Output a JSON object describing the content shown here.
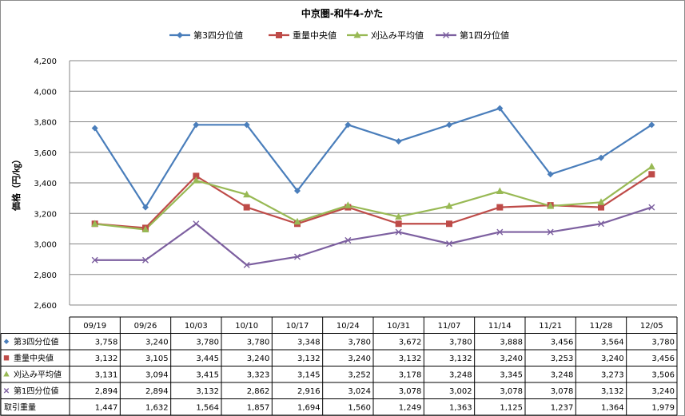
{
  "chart_data": {
    "type": "line",
    "title": "中京圏-和牛4-かた",
    "ylabel": "価格（円/㎏）",
    "ylim": [
      2600,
      4200
    ],
    "yticks": [
      "2,600",
      "2,800",
      "3,000",
      "3,200",
      "3,400",
      "3,600",
      "3,800",
      "4,000",
      "4,200"
    ],
    "ytick_values": [
      2600,
      2800,
      3000,
      3200,
      3400,
      3600,
      3800,
      4000,
      4200
    ],
    "grid": true,
    "legend_position": "top",
    "categories": [
      "09/19",
      "09/26",
      "10/03",
      "10/10",
      "10/17",
      "10/24",
      "10/31",
      "11/07",
      "11/14",
      "11/21",
      "11/28",
      "12/05"
    ],
    "series": [
      {
        "name": "第3四分位値",
        "color": "#4a7ebb",
        "marker": "diamond",
        "values": [
          3758,
          3240,
          3780,
          3780,
          3348,
          3780,
          3672,
          3780,
          3888,
          3456,
          3564,
          3780
        ],
        "labels": [
          "3,758",
          "3,240",
          "3,780",
          "3,780",
          "3,348",
          "3,780",
          "3,672",
          "3,780",
          "3,888",
          "3,456",
          "3,564",
          "3,780"
        ]
      },
      {
        "name": "重量中央値",
        "color": "#be4b48",
        "marker": "square",
        "values": [
          3132,
          3105,
          3445,
          3240,
          3132,
          3240,
          3132,
          3132,
          3240,
          3253,
          3240,
          3456
        ],
        "labels": [
          "3,132",
          "3,105",
          "3,445",
          "3,240",
          "3,132",
          "3,240",
          "3,132",
          "3,132",
          "3,240",
          "3,253",
          "3,240",
          "3,456"
        ]
      },
      {
        "name": "刈込み平均値",
        "color": "#98b954",
        "marker": "triangle",
        "values": [
          3131,
          3094,
          3415,
          3323,
          3145,
          3252,
          3178,
          3248,
          3345,
          3248,
          3273,
          3506
        ],
        "labels": [
          "3,131",
          "3,094",
          "3,415",
          "3,323",
          "3,145",
          "3,252",
          "3,178",
          "3,248",
          "3,345",
          "3,248",
          "3,273",
          "3,506"
        ]
      },
      {
        "name": "第1四分位値",
        "color": "#7d60a0",
        "marker": "x",
        "values": [
          2894,
          2894,
          3132,
          2862,
          2916,
          3024,
          3078,
          3002,
          3078,
          3078,
          3132,
          3240
        ],
        "labels": [
          "2,894",
          "2,894",
          "3,132",
          "2,862",
          "2,916",
          "3,024",
          "3,078",
          "3,002",
          "3,078",
          "3,078",
          "3,132",
          "3,240"
        ]
      }
    ],
    "table_extra_rows": [
      {
        "name": "取引重量",
        "values": [
          1447,
          1632,
          1564,
          1857,
          1694,
          1560,
          1249,
          1363,
          1125,
          1237,
          1364,
          1979
        ],
        "labels": [
          "1,447",
          "1,632",
          "1,564",
          "1,857",
          "1,694",
          "1,560",
          "1,249",
          "1,363",
          "1,125",
          "1,237",
          "1,364",
          "1,979"
        ]
      }
    ]
  }
}
